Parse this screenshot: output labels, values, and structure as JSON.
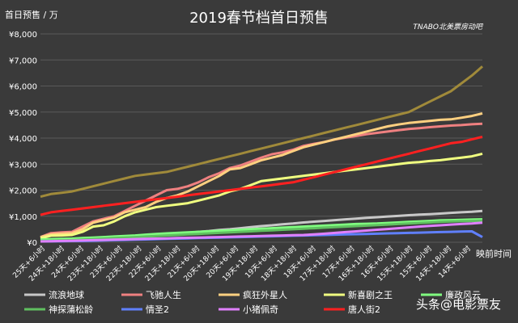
{
  "chart_data": {
    "type": "line",
    "title": "2019春节档首日预售",
    "ylabel": "首日预售 / 万",
    "xlabel": "映前时间",
    "watermark_label": "TNABO北美票房动吧",
    "ylim": [
      0,
      8000
    ],
    "y_ticks": [
      "¥0",
      "¥1,000",
      "¥2,000",
      "¥3,000",
      "¥4,000",
      "¥5,000",
      "¥6,000",
      "¥7,000",
      "¥8,000"
    ],
    "x_ticks": [
      "25天+6小时",
      "24天+18小时",
      "24天+6小时",
      "23天+18小时",
      "23天+6小时",
      "22天+18小时",
      "22天+6小时",
      "21天+18小时",
      "21天+6小时",
      "20天+18小时",
      "20天+6小时",
      "19天+18小时",
      "19天+6小时",
      "18天+18小时",
      "18天+6小时",
      "17天+18小时",
      "17天+6小时",
      "16天+18小时",
      "16天+6小时",
      "15天+18小时",
      "15天+6小时",
      "14天+18小时",
      "14天+6小时"
    ],
    "grid": true,
    "legend_placement": "bottom",
    "series": [
      {
        "name": "流浪地球",
        "color": "#c8c8c8",
        "values": [
          50,
          80,
          90,
          100,
          110,
          130,
          150,
          170,
          190,
          210,
          240,
          270,
          300,
          330,
          360,
          400,
          430,
          470,
          500,
          540,
          580,
          620,
          650,
          690,
          720,
          760,
          790,
          820,
          850,
          880,
          910,
          940,
          960,
          990,
          1010,
          1040,
          1060,
          1080,
          1100,
          1130,
          1150,
          1170,
          1200
        ]
      },
      {
        "name": "飞驰人生",
        "color": "#ef8080",
        "values": [
          200,
          350,
          380,
          400,
          600,
          800,
          900,
          1000,
          1200,
          1400,
          1600,
          1800,
          2000,
          2050,
          2150,
          2300,
          2500,
          2650,
          2850,
          2950,
          3100,
          3250,
          3380,
          3450,
          3550,
          3700,
          3780,
          3850,
          3950,
          4020,
          4080,
          4150,
          4200,
          4250,
          4300,
          4350,
          4380,
          4420,
          4450,
          4480,
          4500,
          4530,
          4550
        ]
      },
      {
        "name": "疯狂外星人",
        "color": "#ffd080",
        "values": [
          200,
          300,
          330,
          350,
          500,
          750,
          850,
          950,
          1150,
          1250,
          1350,
          1550,
          1700,
          1800,
          1950,
          2150,
          2350,
          2550,
          2800,
          2850,
          3000,
          3150,
          3250,
          3350,
          3500,
          3650,
          3750,
          3850,
          3950,
          4050,
          4150,
          4250,
          4350,
          4450,
          4520,
          4580,
          4620,
          4660,
          4700,
          4720,
          4780,
          4850,
          4950
        ]
      },
      {
        "name": "新喜剧之王",
        "color": "#f0ff80",
        "values": [
          150,
          250,
          260,
          280,
          400,
          600,
          650,
          800,
          1000,
          1150,
          1250,
          1350,
          1400,
          1450,
          1500,
          1600,
          1700,
          1800,
          1950,
          2050,
          2200,
          2350,
          2400,
          2450,
          2500,
          2550,
          2600,
          2650,
          2700,
          2750,
          2800,
          2850,
          2900,
          2950,
          3000,
          3050,
          3080,
          3120,
          3150,
          3200,
          3250,
          3300,
          3400
        ]
      },
      {
        "name": "廉政风云",
        "color": "#80ff80",
        "values": [
          100,
          120,
          130,
          140,
          160,
          180,
          200,
          220,
          240,
          260,
          290,
          320,
          340,
          360,
          380,
          400,
          420,
          440,
          460,
          480,
          500,
          520,
          540,
          560,
          580,
          600,
          620,
          640,
          660,
          680,
          700,
          710,
          720,
          740,
          760,
          780,
          800,
          820,
          840,
          850,
          860,
          870,
          880
        ]
      },
      {
        "name": "神探蒲松龄",
        "color": "#60c060",
        "values": [
          50,
          60,
          70,
          80,
          100,
          120,
          140,
          160,
          180,
          200,
          220,
          240,
          260,
          280,
          300,
          320,
          340,
          360,
          380,
          400,
          420,
          440,
          460,
          480,
          500,
          520,
          540,
          560,
          580,
          600,
          620,
          640,
          660,
          680,
          700,
          720,
          740,
          760,
          780,
          800,
          810,
          820,
          830
        ]
      },
      {
        "name": "情圣2",
        "color": "#6080ff",
        "values": [
          30,
          35,
          40,
          45,
          50,
          60,
          70,
          80,
          90,
          100,
          110,
          120,
          130,
          140,
          150,
          160,
          170,
          180,
          190,
          200,
          210,
          220,
          230,
          240,
          250,
          260,
          270,
          280,
          290,
          300,
          310,
          320,
          330,
          340,
          350,
          360,
          370,
          380,
          390,
          400,
          410,
          420,
          200
        ]
      },
      {
        "name": "小猪佩奇",
        "color": "#e080ff",
        "values": [
          30,
          40,
          50,
          60,
          70,
          80,
          90,
          100,
          110,
          120,
          130,
          140,
          150,
          160,
          170,
          180,
          190,
          200,
          210,
          220,
          230,
          240,
          250,
          260,
          270,
          280,
          300,
          330,
          360,
          390,
          420,
          450,
          480,
          510,
          540,
          570,
          600,
          630,
          650,
          680,
          700,
          720,
          750
        ]
      },
      {
        "name": "唐人街2",
        "color": "#ff2020",
        "values": [
          1050,
          1150,
          1200,
          1250,
          1300,
          1350,
          1400,
          1450,
          1500,
          1550,
          1600,
          1650,
          1700,
          1750,
          1800,
          1850,
          1900,
          1950,
          2000,
          2050,
          2100,
          2150,
          2200,
          2250,
          2300,
          2400,
          2500,
          2600,
          2700,
          2800,
          2900,
          3000,
          3100,
          3200,
          3300,
          3400,
          3500,
          3600,
          3700,
          3800,
          3850,
          3950,
          4050
        ]
      },
      {
        "name": "",
        "color": "#a08a3a",
        "values": [
          1750,
          1850,
          1900,
          1950,
          2050,
          2150,
          2250,
          2350,
          2450,
          2550,
          2600,
          2650,
          2700,
          2800,
          2900,
          3000,
          3100,
          3200,
          3300,
          3400,
          3500,
          3600,
          3700,
          3800,
          3900,
          4000,
          4100,
          4200,
          4300,
          4400,
          4500,
          4600,
          4700,
          4800,
          4900,
          5000,
          5200,
          5400,
          5600,
          5800,
          6100,
          6400,
          6750
        ]
      }
    ]
  },
  "watermark": "头条@电影票友"
}
